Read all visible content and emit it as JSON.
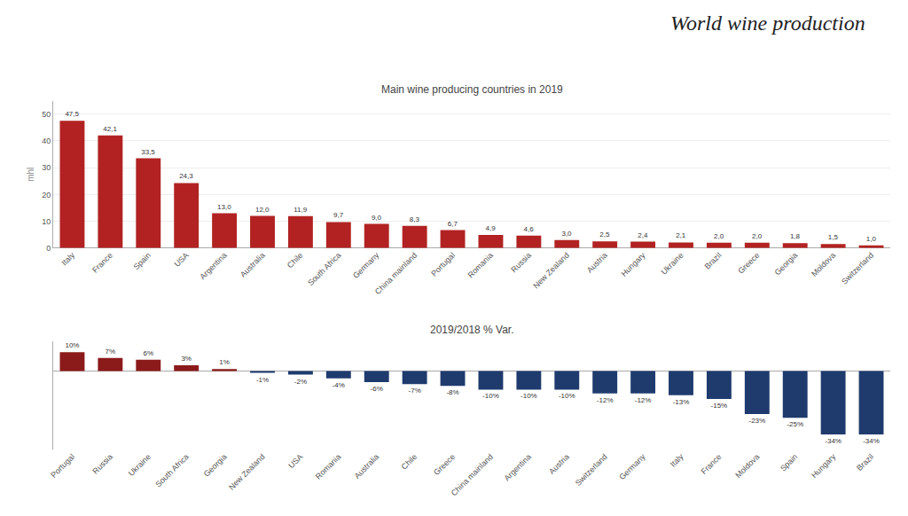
{
  "chart_data": [
    {
      "type": "bar",
      "title": "World wine production",
      "subtitle": "Main wine producing countries in 2019",
      "ylabel": "mhl",
      "categories": [
        "Italy",
        "France",
        "Spain",
        "USA",
        "Argentina",
        "Australia",
        "Chile",
        "South Africa",
        "Germany",
        "China mainland",
        "Portugal",
        "Romania",
        "Russia",
        "New Zealand",
        "Austria",
        "Hungary",
        "Ukraine",
        "Brazil",
        "Greece",
        "Georgia",
        "Moldova",
        "Switzerland"
      ],
      "values": [
        47.5,
        42.1,
        33.5,
        24.3,
        13.0,
        12.0,
        11.9,
        9.7,
        9.0,
        8.3,
        6.7,
        4.9,
        4.6,
        3.0,
        2.5,
        2.4,
        2.1,
        2.0,
        2.0,
        1.8,
        1.5,
        1.0
      ],
      "value_labels": [
        "47,5",
        "42,1",
        "33,5",
        "24,3",
        "13,0",
        "12,0",
        "11,9",
        "9,7",
        "9,0",
        "8,3",
        "6,7",
        "4,9",
        "4,6",
        "3,0",
        "2,5",
        "2,4",
        "2,1",
        "2,0",
        "2,0",
        "1,8",
        "1,5",
        "1,0"
      ],
      "data_labels": true,
      "color": "#B22222",
      "ylim": [
        0,
        55
      ],
      "yticks": [
        0,
        10,
        20,
        30,
        40,
        50
      ],
      "grid": true
    },
    {
      "type": "bar",
      "title": "2019/2018 % Var.",
      "categories": [
        "Portugal",
        "Russia",
        "Ukraine",
        "South Africa",
        "Georgia",
        "New Zealand",
        "USA",
        "Romania",
        "Australia",
        "Chile",
        "Greece",
        "China mainland",
        "Argentina",
        "Austria",
        "Switzerland",
        "Germany",
        "Italy",
        "France",
        "Moldova",
        "Spain",
        "Hungary",
        "Brazil"
      ],
      "values": [
        10,
        7,
        6,
        3,
        1,
        -1,
        -2,
        -4,
        -6,
        -7,
        -8,
        -10,
        -10,
        -10,
        -12,
        -12,
        -13,
        -15,
        -23,
        -25,
        -34,
        -34
      ],
      "value_labels": [
        "10%",
        "7%",
        "6%",
        "3%",
        "1%",
        "-1%",
        "-2%",
        "-4%",
        "-6%",
        "-7%",
        "-8%",
        "-10%",
        "-10%",
        "-10%",
        "-12%",
        "-12%",
        "-13%",
        "-15%",
        "-23%",
        "-25%",
        "-34%",
        "-34%"
      ],
      "data_labels": true,
      "colors": [
        "#8B1A1A",
        "#8B1A1A",
        "#8B1A1A",
        "#8B1A1A",
        "#8B1A1A",
        "#1F3B6E",
        "#1F3B6E",
        "#1F3B6E",
        "#1F3B6E",
        "#1F3B6E",
        "#1F3B6E",
        "#1F3B6E",
        "#1F3B6E",
        "#1F3B6E",
        "#1F3B6E",
        "#1F3B6E",
        "#1F3B6E",
        "#1F3B6E",
        "#1F3B6E",
        "#1F3B6E",
        "#1F3B6E",
        "#1F3B6E"
      ],
      "ylim": [
        -42,
        16
      ],
      "tick_labels": "x",
      "grid": false
    }
  ]
}
